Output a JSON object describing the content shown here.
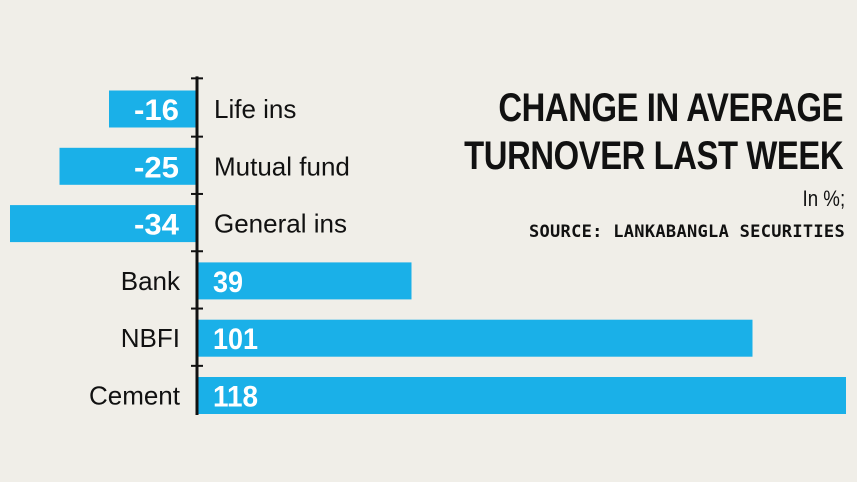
{
  "title_line1": "CHANGE IN AVERAGE",
  "title_line2": "TURNOVER LAST WEEK",
  "unit": "In %;",
  "source": "SOURCE: LANKABANGLA SECURITIES",
  "colors": {
    "bar": "#1ab0e8",
    "background": "#f0eee8",
    "axis": "#111111"
  },
  "chart_data": {
    "type": "bar",
    "orientation": "horizontal",
    "title": "CHANGE IN AVERAGE TURNOVER LAST WEEK",
    "unit": "In %",
    "categories": [
      "Life ins",
      "Mutual fund",
      "General ins",
      "Bank",
      "NBFI",
      "Cement"
    ],
    "values": [
      -16,
      -25,
      -34,
      39,
      101,
      118
    ],
    "xlim": [
      -35,
      118
    ],
    "grid": false,
    "legend": "none"
  }
}
